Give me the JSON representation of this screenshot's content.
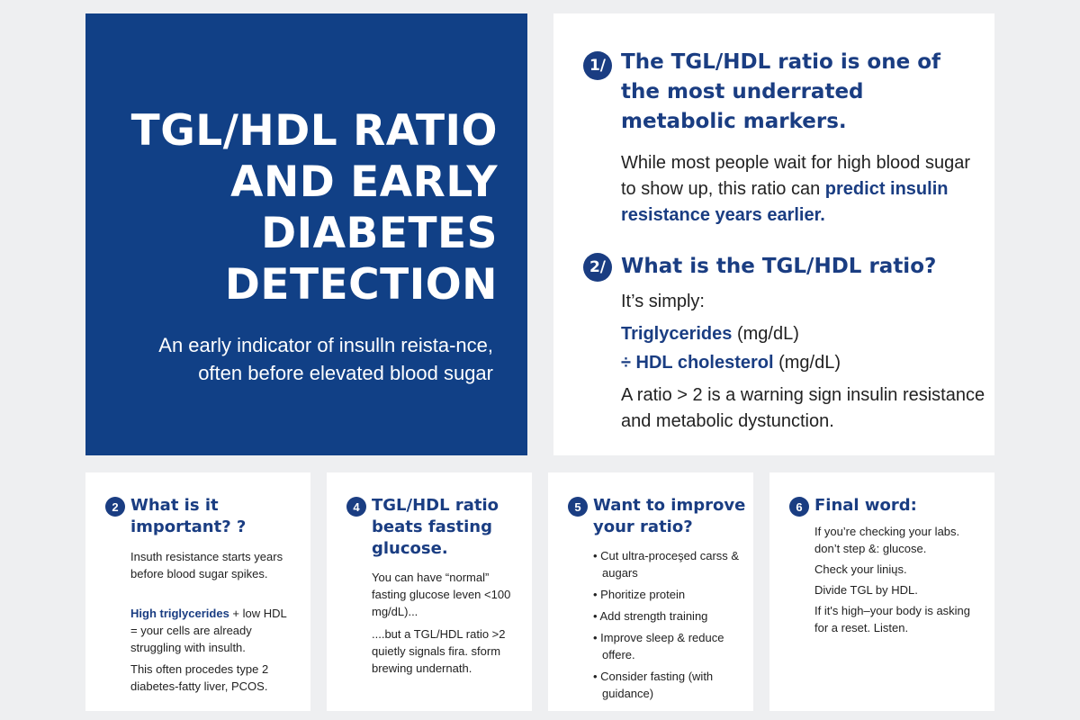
{
  "hero": {
    "title": "TGL/HDL RATIO AND EARLY DIABETES DETECTION",
    "subtitle": "An early indicator of insulln reista-nce, often before elevated blood sugar"
  },
  "main": {
    "s1": {
      "num": "1/",
      "heading": "The  TGL/HDL ratio is one of the most underrated metabolic markers.",
      "body_plain": "While most people wait for high blood sugar to show up, this ratio can ",
      "body_bold": "predict insulin resistance years earlier."
    },
    "s2": {
      "num": "2/",
      "heading": "What is the TGL/HDL ratio?",
      "intro": "It’s simply:",
      "line1_bold": "Triglycerides",
      "line1_unit": " (mg/dL)",
      "line2_bold": "÷ HDL cholesterol",
      "line2_unit": " (mg/dL)",
      "note": "A ratio > 2 is a warning sign insulin resistance and metabolic dystunction."
    }
  },
  "cards": [
    {
      "num": "2",
      "title": "What is it important? ?",
      "p1": "Insuth resistance starts years before blood sugar spikes.",
      "p2_bold": "High triglycerides",
      "p2_rest": " + low HDL = your cells are already struggling with insulth.",
      "p3": "This often procedes type 2 diabetes-fatty liver, PCOS."
    },
    {
      "num": "4",
      "title": "TGL/HDL ratio beats fasting glucose.",
      "p1": "You can have “normal” fasting glucose leven <100 mg/dL)...",
      "p2": "....but a TGL/HDL ratio >2 quietly signals fira. sform brewing undernath."
    },
    {
      "num": "5",
      "title": "Want to improve your ratio?",
      "bullets": [
        "• Cut ultra-proceşed carss & augars",
        "• Phoritize protein",
        "• Add strength training",
        "• Improve sleep & reduce offere.",
        "• Consider fasting (with guidance)"
      ]
    },
    {
      "num": "6",
      "title": "Final word:",
      "p1": "If you’re checking your labs. don’t step &: glucose.",
      "p2": "Check your liniųs.",
      "p3": "Divide TGL by HDL.",
      "p4": "If it's high–your body is asking for a reset. Listen."
    }
  ]
}
